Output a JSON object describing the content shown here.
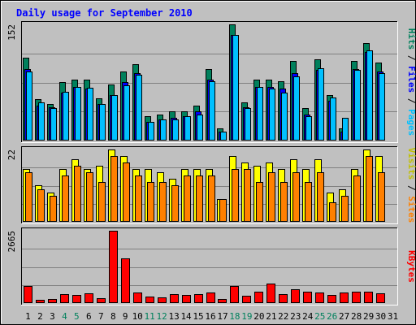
{
  "chart_data": {
    "type": "bar",
    "title": "Daily usage for September 2010",
    "categories": [
      "1",
      "2",
      "3",
      "4",
      "5",
      "6",
      "7",
      "8",
      "9",
      "10",
      "11",
      "12",
      "13",
      "14",
      "15",
      "16",
      "17",
      "18",
      "19",
      "20",
      "21",
      "22",
      "23",
      "24",
      "25",
      "26",
      "27",
      "28",
      "29",
      "30",
      "31"
    ],
    "weekend_days": [
      "4",
      "5",
      "11",
      "12",
      "18",
      "19",
      "25",
      "26"
    ],
    "colors": {
      "hits": "#00805c",
      "files": "#0000ff",
      "pages": "#00c0ff",
      "visits": "#ffff00",
      "sites": "#ff8000",
      "kbytes": "#ff0000",
      "panel_bg": "#c0c0c0",
      "title": "#0000ff",
      "weekend_label": "#00805c",
      "weekday_label": "#000000"
    },
    "panels": [
      {
        "id": "hits-files-pages",
        "ymax_label": "152",
        "ymax": 152,
        "side_label": [
          {
            "text": "Hits",
            "color": "#00805c"
          },
          {
            "text": " / ",
            "color": "#000000"
          },
          {
            "text": "Files",
            "color": "#0000ff"
          },
          {
            "text": " / ",
            "color": "#000000"
          },
          {
            "text": "Pages",
            "color": "#00c0ff"
          }
        ],
        "series": [
          {
            "name": "Hits",
            "color": "#00805c",
            "values": [
              108,
              54,
              48,
              77,
              80,
              80,
              55,
              73,
              90,
              100,
              32,
              34,
              38,
              38,
              46,
              94,
              16,
              152,
              50,
              80,
              80,
              78,
              104,
              42,
              106,
              60,
              16,
              104,
              128,
              102,
              0
            ]
          },
          {
            "name": "Files",
            "color": "#0000ff",
            "values": [
              94,
              46,
              44,
              63,
              70,
              68,
              48,
              60,
              76,
              88,
              24,
              28,
              30,
              32,
              38,
              80,
              12,
              138,
              44,
              70,
              70,
              68,
              88,
              34,
              92,
              52,
              12,
              94,
              116,
              90,
              0
            ]
          },
          {
            "name": "Pages",
            "color": "#00c0ff",
            "values": [
              90,
              50,
              42,
              64,
              70,
              69,
              48,
              60,
              72,
              86,
              24,
              28,
              28,
              32,
              34,
              78,
              12,
              138,
              42,
              70,
              68,
              63,
              84,
              32,
              95,
              56,
              30,
              93,
              118,
              88,
              0
            ]
          }
        ]
      },
      {
        "id": "visits-sites",
        "ymax_label": "22",
        "ymax": 22,
        "side_label": [
          {
            "text": "Visits",
            "color": "#c0c000"
          },
          {
            "text": " / ",
            "color": "#000000"
          },
          {
            "text": "Sites",
            "color": "#ff8000"
          }
        ],
        "series": [
          {
            "name": "Visits",
            "color": "#ffff00",
            "values": [
              16,
              11,
              9,
              16,
              19,
              16,
              17,
              22,
              20,
              16,
              16,
              15,
              13,
              16,
              16,
              16,
              7,
              20,
              18,
              17,
              18,
              16,
              19,
              16,
              19,
              9,
              10,
              16,
              22,
              20,
              0
            ]
          },
          {
            "name": "Sites",
            "color": "#ff8000",
            "values": [
              15,
              10,
              8,
              14,
              17,
              15,
              12,
              20,
              18,
              14,
              12,
              12,
              11,
              14,
              14,
              14,
              7,
              16,
              16,
              12,
              15,
              12,
              15,
              12,
              15,
              6,
              8,
              14,
              20,
              15,
              0
            ]
          }
        ]
      },
      {
        "id": "kbytes",
        "ymax_label": "2665",
        "ymax": 2665,
        "side_label": [
          {
            "text": "KBytes",
            "color": "#ff0000"
          }
        ],
        "series": [
          {
            "name": "KBytes",
            "color": "#ff0000",
            "values": [
              640,
              110,
              140,
              330,
              310,
              360,
              170,
              2665,
              1650,
              380,
              250,
              220,
              340,
              310,
              340,
              400,
              150,
              640,
              270,
              430,
              730,
              320,
              500,
              410,
              400,
              300,
              400,
              420,
              420,
              350,
              0
            ]
          }
        ]
      }
    ]
  }
}
